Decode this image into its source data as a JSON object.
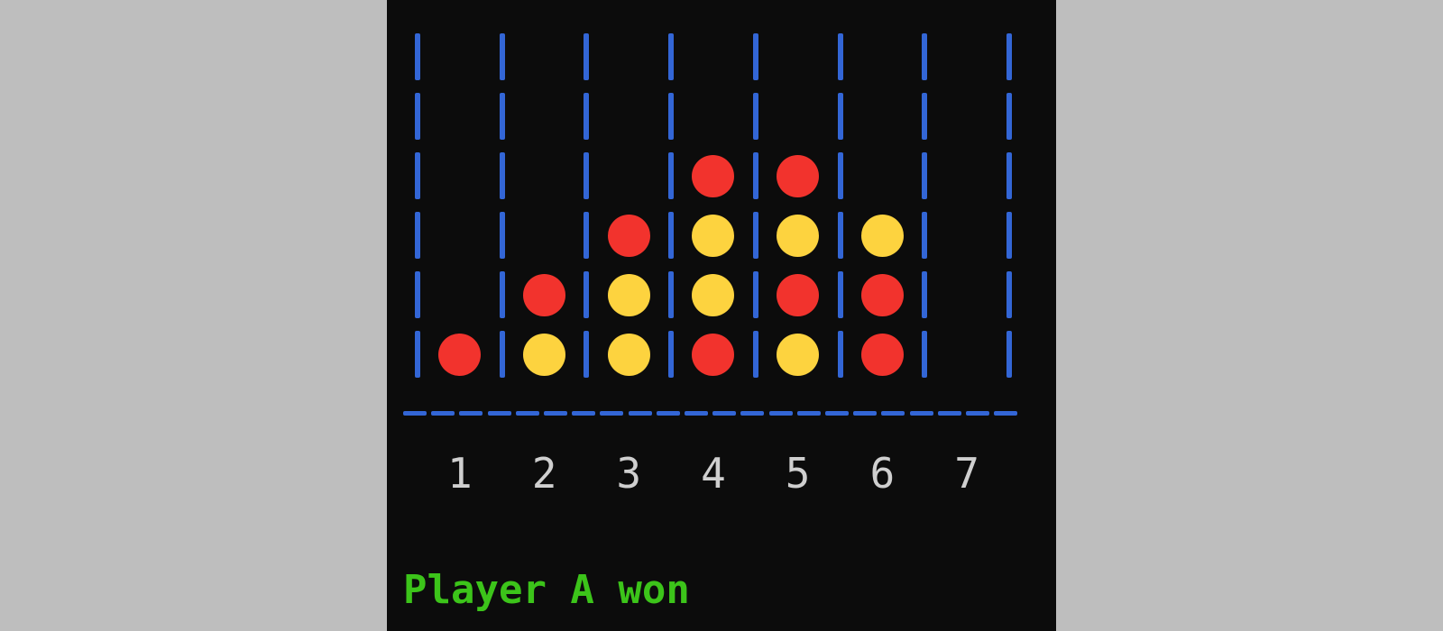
{
  "board": {
    "columns": 7,
    "rows": 6,
    "column_labels": [
      "1",
      "2",
      "3",
      "4",
      "5",
      "6",
      "7"
    ],
    "grid": [
      [
        "",
        "",
        "",
        "",
        "",
        "",
        ""
      ],
      [
        "",
        "",
        "",
        "",
        "",
        "",
        ""
      ],
      [
        "",
        "",
        "",
        "R",
        "R",
        "",
        ""
      ],
      [
        "",
        "",
        "R",
        "Y",
        "Y",
        "Y",
        ""
      ],
      [
        "",
        "R",
        "Y",
        "Y",
        "R",
        "R",
        ""
      ],
      [
        "R",
        "Y",
        "Y",
        "R",
        "Y",
        "R",
        ""
      ]
    ]
  },
  "status": {
    "message": "Player A won"
  },
  "colors": {
    "red": "#f2332d",
    "yellow": "#fdd33f",
    "grid": "#3366d6",
    "status_text": "#3cc41a",
    "label_text": "#cfcfcf",
    "background": "#0c0c0c"
  }
}
